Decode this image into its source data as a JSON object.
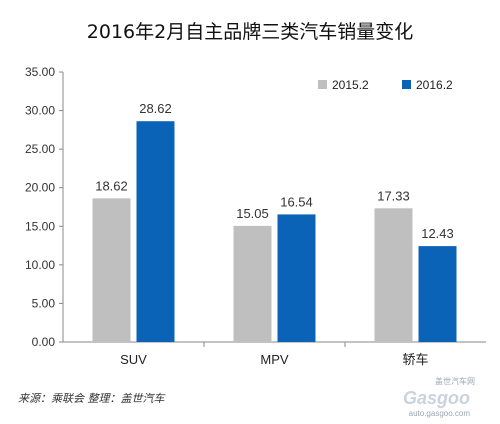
{
  "chart_data": {
    "type": "bar",
    "title": "2016年2月自主品牌三类汽车销量变化",
    "categories": [
      "SUV",
      "MPV",
      "轿车"
    ],
    "series": [
      {
        "name": "2015.2",
        "values": [
          18.62,
          15.05,
          17.33
        ],
        "value_labels": [
          "18.62",
          "15.05",
          "17.33"
        ],
        "color": "#bfbfbf"
      },
      {
        "name": "2016.2",
        "values": [
          28.62,
          16.54,
          12.43
        ],
        "value_labels": [
          "28.62",
          "16.54",
          "12.43"
        ],
        "color": "#0b63b8"
      }
    ],
    "ylim": [
      0,
      35
    ],
    "y_ticks": [
      "0.00",
      "5.00",
      "10.00",
      "15.00",
      "20.00",
      "25.00",
      "30.00",
      "35.00"
    ],
    "xlabel": "",
    "ylabel": "",
    "grid": false,
    "legend_position": "top-right"
  },
  "source_note": "来源：乘联会  整理：盖世汽车",
  "watermark": {
    "top": "盖世汽车网",
    "logo": "Gasgoo",
    "url": "auto.gasgoo.com"
  }
}
